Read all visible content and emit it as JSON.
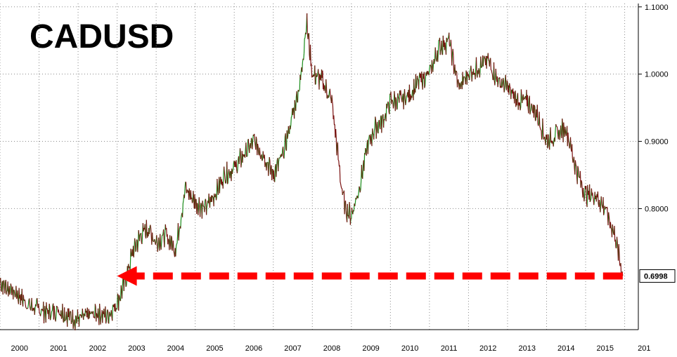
{
  "chart_data": {
    "type": "line",
    "title": "CADUSD",
    "xlabel": "",
    "ylabel": "",
    "x_tick_labels": [
      "2000",
      "2001",
      "2002",
      "2003",
      "2004",
      "2005",
      "2006",
      "2007",
      "2008",
      "2009",
      "2010",
      "2011",
      "2012",
      "2013",
      "2014",
      "2015",
      "201"
    ],
    "y_tick_labels": [
      "1.1000",
      "1.0000",
      "0.9000",
      "0.8000"
    ],
    "y_ticks": [
      1.1,
      1.0,
      0.9,
      0.8
    ],
    "ylim": [
      0.62,
      1.105
    ],
    "xlim": [
      2000.0,
      2016.35
    ],
    "grid": true,
    "last_value_label": "0.6998",
    "last_value": 0.6998,
    "series": [
      {
        "x": [
          2000.0,
          2000.25,
          2000.5,
          2000.75,
          2001.0,
          2001.25,
          2001.5,
          2001.75,
          2002.0,
          2002.25,
          2002.5,
          2002.75,
          2003.0,
          2003.2,
          2003.4,
          2003.6,
          2003.8,
          2004.0,
          2004.25,
          2004.5,
          2004.75,
          2005.0,
          2005.25,
          2005.5,
          2005.75,
          2006.0,
          2006.25,
          2006.5,
          2006.75,
          2007.0,
          2007.25,
          2007.5,
          2007.7,
          2007.85,
          2008.0,
          2008.25,
          2008.5,
          2008.75,
          2008.85,
          2009.0,
          2009.2,
          2009.4,
          2009.6,
          2009.8,
          2010.0,
          2010.25,
          2010.5,
          2010.75,
          2011.0,
          2011.25,
          2011.5,
          2011.75,
          2012.0,
          2012.25,
          2012.5,
          2012.75,
          2013.0,
          2013.25,
          2013.5,
          2013.75,
          2014.0,
          2014.25,
          2014.5,
          2014.75,
          2015.0,
          2015.25,
          2015.5,
          2015.75,
          2015.95
        ],
        "values": [
          0.69,
          0.68,
          0.67,
          0.655,
          0.65,
          0.645,
          0.65,
          0.64,
          0.635,
          0.64,
          0.645,
          0.64,
          0.66,
          0.69,
          0.735,
          0.76,
          0.77,
          0.75,
          0.76,
          0.74,
          0.83,
          0.81,
          0.8,
          0.82,
          0.85,
          0.86,
          0.88,
          0.9,
          0.88,
          0.85,
          0.88,
          0.94,
          0.99,
          1.08,
          1.0,
          0.99,
          0.96,
          0.83,
          0.8,
          0.79,
          0.83,
          0.89,
          0.92,
          0.93,
          0.96,
          0.96,
          0.97,
          0.99,
          1.0,
          1.04,
          1.05,
          0.98,
          1.0,
          1.01,
          1.02,
          0.99,
          0.98,
          0.96,
          0.96,
          0.94,
          0.9,
          0.91,
          0.92,
          0.86,
          0.82,
          0.82,
          0.8,
          0.76,
          0.7
        ]
      }
    ],
    "annotations": [
      {
        "type": "arrow",
        "style": "dashed",
        "color": "#ff0000",
        "from_x": 2015.95,
        "to_x": 2003.0,
        "y": 0.6998
      }
    ],
    "colors": {
      "line": "#1a8c1a",
      "line_dark": "#7a1010",
      "arrow": "#ff0000",
      "grid": "#8a8a8a"
    }
  }
}
